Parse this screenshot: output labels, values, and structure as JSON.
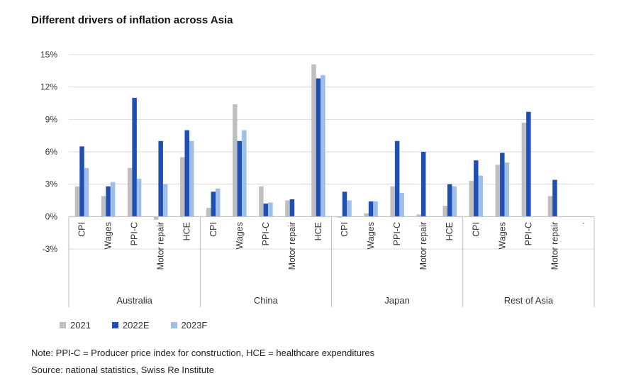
{
  "chart_data": {
    "type": "bar",
    "title": "Different drivers of inflation across Asia",
    "yticks": [
      "15%",
      "12%",
      "9%",
      "6%",
      "3%",
      "0%",
      "-3%"
    ],
    "ylim": [
      -3,
      15
    ],
    "grid": true,
    "legend_position": "bottom-left",
    "groups": [
      {
        "name": "Australia",
        "categories": [
          "CPI",
          "Wages",
          "PPI-C",
          "Motor repair",
          "HCE"
        ]
      },
      {
        "name": "China",
        "categories": [
          "CPI",
          "Wages",
          "PPI-C",
          "Motor repair",
          "HCE"
        ]
      },
      {
        "name": "Japan",
        "categories": [
          "CPI",
          "Wages",
          "PPI-C",
          "Motor repair",
          "HCE"
        ]
      },
      {
        "name": "Rest of Asia",
        "categories": [
          "CPI",
          "Wages",
          "PPI-C",
          "Motor repair",
          "."
        ]
      }
    ],
    "series": [
      {
        "name": "2021",
        "color": "#bfbfbf",
        "values": [
          2.8,
          1.9,
          4.5,
          -0.3,
          5.5,
          0.8,
          10.4,
          2.8,
          1.5,
          14.1,
          -0.1,
          0.3,
          2.8,
          0.2,
          1.0,
          3.3,
          4.8,
          8.7,
          1.9,
          null
        ]
      },
      {
        "name": "2022E",
        "color": "#1f4fb5",
        "values": [
          6.5,
          2.8,
          11.0,
          7.0,
          8.0,
          2.3,
          7.0,
          1.2,
          1.6,
          12.8,
          2.3,
          1.4,
          7.0,
          6.0,
          3.0,
          5.2,
          5.9,
          9.7,
          3.4,
          null
        ]
      },
      {
        "name": "2023F",
        "color": "#9dbfe8",
        "values": [
          4.5,
          3.2,
          3.5,
          3.0,
          7.0,
          2.6,
          8.0,
          1.3,
          null,
          13.1,
          1.5,
          1.4,
          2.2,
          null,
          2.8,
          3.8,
          5.0,
          null,
          null,
          null
        ]
      }
    ]
  },
  "notes": {
    "note": "Note: PPI-C = Producer price index for construction, HCE = healthcare expenditures",
    "source": "Source: national statistics, Swiss Re Institute"
  }
}
